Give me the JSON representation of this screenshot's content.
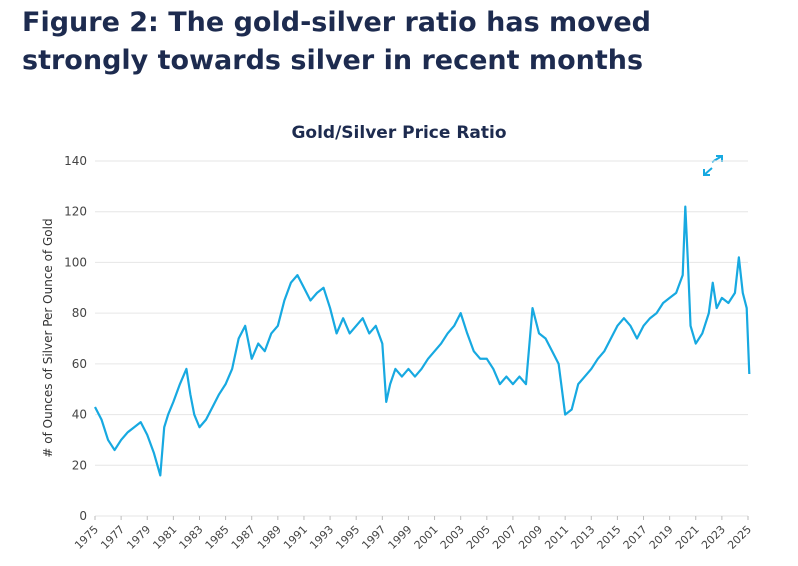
{
  "chart_data": {
    "type": "line",
    "headline": "Figure 2: The gold-silver ratio has moved strongly towards silver in recent months",
    "title": "Gold/Silver Price Ratio",
    "y_label": "# of Ounces of Silver Per Ounce of Gold",
    "xlim": [
      1975,
      2025
    ],
    "xticks": [
      1975,
      1977,
      1979,
      1981,
      1983,
      1985,
      1987,
      1989,
      1991,
      1993,
      1995,
      1997,
      1999,
      2001,
      2003,
      2005,
      2007,
      2009,
      2011,
      2013,
      2015,
      2017,
      2019,
      2021,
      2023,
      2025
    ],
    "ylim": [
      0,
      140
    ],
    "yticks": [
      0,
      20,
      40,
      60,
      80,
      100,
      120,
      140
    ],
    "grid": true,
    "x": [
      1975,
      1975.5,
      1976,
      1976.5,
      1977,
      1977.5,
      1978,
      1978.5,
      1979,
      1979.5,
      1980,
      1980.3,
      1980.6,
      1981,
      1981.5,
      1982,
      1982.3,
      1982.6,
      1983,
      1983.5,
      1984,
      1984.5,
      1985,
      1985.5,
      1986,
      1986.5,
      1987,
      1987.5,
      1988,
      1988.5,
      1989,
      1989.5,
      1990,
      1990.5,
      1991,
      1991.5,
      1992,
      1992.5,
      1993,
      1993.5,
      1994,
      1994.5,
      1995,
      1995.5,
      1996,
      1996.5,
      1997,
      1997.3,
      1997.6,
      1998,
      1998.5,
      1999,
      1999.5,
      2000,
      2000.5,
      2001,
      2001.5,
      2002,
      2002.5,
      2003,
      2003.5,
      2004,
      2004.5,
      2005,
      2005.5,
      2006,
      2006.5,
      2007,
      2007.5,
      2008,
      2008.5,
      2009,
      2009.5,
      2010,
      2010.5,
      2011,
      2011.5,
      2012,
      2012.5,
      2013,
      2013.5,
      2014,
      2014.5,
      2015,
      2015.5,
      2016,
      2016.5,
      2017,
      2017.5,
      2018,
      2018.5,
      2019,
      2019.5,
      2020,
      2020.2,
      2020.4,
      2020.6,
      2021,
      2021.5,
      2022,
      2022.3,
      2022.6,
      2023,
      2023.5,
      2024,
      2024.3,
      2024.6,
      2024.9,
      2025.1
    ],
    "series": [
      {
        "color": "#17a9e1",
        "values": [
          43,
          38,
          30,
          26,
          30,
          33,
          35,
          37,
          32,
          25,
          16,
          35,
          40,
          45,
          52,
          58,
          48,
          40,
          35,
          38,
          43,
          48,
          52,
          58,
          70,
          75,
          62,
          68,
          65,
          72,
          75,
          85,
          92,
          95,
          90,
          85,
          88,
          90,
          82,
          72,
          78,
          72,
          75,
          78,
          72,
          75,
          68,
          45,
          52,
          58,
          55,
          58,
          55,
          58,
          62,
          65,
          68,
          72,
          75,
          80,
          72,
          65,
          62,
          62,
          58,
          52,
          55,
          52,
          55,
          52,
          82,
          72,
          70,
          65,
          60,
          40,
          42,
          52,
          55,
          58,
          62,
          65,
          70,
          75,
          78,
          75,
          70,
          75,
          78,
          80,
          84,
          86,
          88,
          95,
          122,
          100,
          75,
          68,
          72,
          80,
          92,
          82,
          86,
          84,
          88,
          102,
          88,
          82,
          56
        ]
      }
    ]
  }
}
